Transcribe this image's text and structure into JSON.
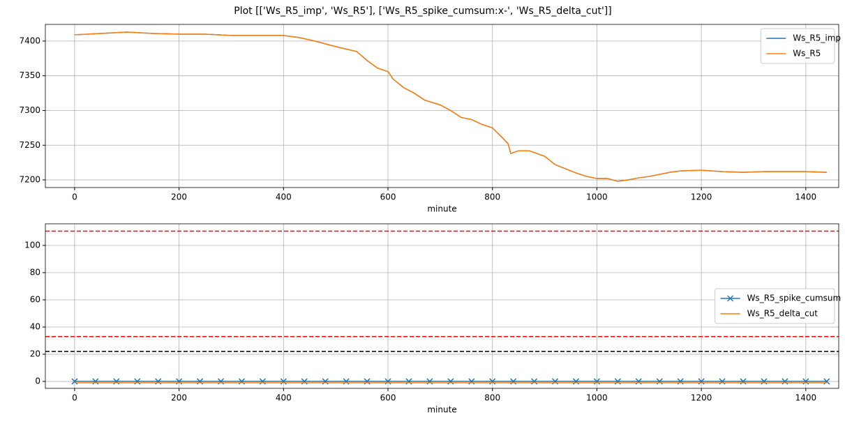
{
  "title": "Plot [['Ws_R5_imp', 'Ws_R5'], ['Ws_R5_spike_cumsum:x-', 'Ws_R5_delta_cut']]",
  "chart_data": [
    {
      "type": "line",
      "x_label": "minute",
      "x": [
        0,
        50,
        100,
        150,
        200,
        250,
        300,
        350,
        400,
        430,
        460,
        500,
        540,
        560,
        580,
        600,
        610,
        630,
        650,
        670,
        700,
        720,
        740,
        760,
        780,
        800,
        820,
        830,
        835,
        850,
        870,
        900,
        920,
        940,
        960,
        980,
        1000,
        1020,
        1040,
        1060,
        1080,
        1100,
        1120,
        1140,
        1160,
        1200,
        1240,
        1280,
        1320,
        1360,
        1400,
        1440
      ],
      "series": [
        {
          "name": "Ws_R5_imp",
          "color": "#1f77b4",
          "values": [
            7409,
            7411,
            7413,
            7411,
            7410,
            7410,
            7408,
            7408,
            7408,
            7405,
            7400,
            7392,
            7385,
            7372,
            7361,
            7356,
            7345,
            7333,
            7325,
            7315,
            7308,
            7300,
            7290,
            7287,
            7280,
            7275,
            7260,
            7252,
            7238,
            7242,
            7242,
            7234,
            7222,
            7216,
            7210,
            7205,
            7202,
            7202,
            7198,
            7200,
            7203,
            7205,
            7208,
            7211,
            7213,
            7214,
            7212,
            7211,
            7212,
            7212,
            7212,
            7211
          ]
        },
        {
          "name": "Ws_R5",
          "color": "#ff7f0e",
          "values": [
            7409,
            7411,
            7413,
            7411,
            7410,
            7410,
            7408,
            7408,
            7408,
            7405,
            7400,
            7392,
            7385,
            7372,
            7361,
            7356,
            7345,
            7333,
            7325,
            7315,
            7308,
            7300,
            7290,
            7287,
            7280,
            7275,
            7260,
            7252,
            7238,
            7242,
            7242,
            7234,
            7222,
            7216,
            7210,
            7205,
            7202,
            7202,
            7198,
            7200,
            7203,
            7205,
            7208,
            7211,
            7213,
            7214,
            7212,
            7211,
            7212,
            7212,
            7212,
            7211
          ]
        }
      ],
      "xlim": [
        -56,
        1463
      ],
      "xticks": [
        0,
        200,
        400,
        600,
        800,
        1000,
        1200,
        1400
      ],
      "ylim": [
        7189,
        7424
      ],
      "yticks": [
        7200,
        7250,
        7300,
        7350,
        7400
      ],
      "grid": true,
      "legend": "upper right"
    },
    {
      "type": "line",
      "x_label": "minute",
      "x": [
        0,
        40,
        80,
        120,
        160,
        200,
        240,
        280,
        320,
        360,
        400,
        440,
        480,
        520,
        560,
        600,
        640,
        680,
        720,
        760,
        800,
        840,
        880,
        920,
        960,
        1000,
        1040,
        1080,
        1120,
        1160,
        1200,
        1240,
        1280,
        1320,
        1360,
        1400,
        1440
      ],
      "series": [
        {
          "name": "Ws_R5_spike_cumsum",
          "color": "#1f77b4",
          "marker": "x",
          "values": [
            0,
            0,
            0,
            0,
            0,
            0,
            0,
            0,
            0,
            0,
            0,
            0,
            0,
            0,
            0,
            0,
            0,
            0,
            0,
            0,
            0,
            0,
            0,
            0,
            0,
            0,
            0,
            0,
            0,
            0,
            0,
            0,
            0,
            0,
            0,
            0,
            0
          ]
        },
        {
          "name": "Ws_R5_delta_cut",
          "color": "#ff7f0e",
          "values": [
            -1,
            -1,
            -1,
            -1,
            -1,
            -1,
            -1,
            -1,
            -1,
            -1,
            -1,
            -1,
            -1,
            -1,
            -1,
            -1,
            -1,
            -1,
            -1,
            -1,
            -1,
            -1,
            -1,
            -1,
            -1,
            -1,
            -1,
            -1,
            -1,
            -1,
            -1,
            -1,
            -1,
            -1,
            -1,
            -1,
            -1
          ]
        }
      ],
      "hlines": [
        {
          "value": 110.5,
          "color": "red"
        },
        {
          "value": 33,
          "color": "red"
        },
        {
          "value": 22,
          "color": "black"
        }
      ],
      "xlim": [
        -56,
        1463
      ],
      "xticks": [
        0,
        200,
        400,
        600,
        800,
        1000,
        1200,
        1400
      ],
      "ylim": [
        -5.1,
        115.9
      ],
      "yticks": [
        0,
        20,
        40,
        60,
        80,
        100
      ],
      "grid": true,
      "legend": "center right"
    }
  ]
}
